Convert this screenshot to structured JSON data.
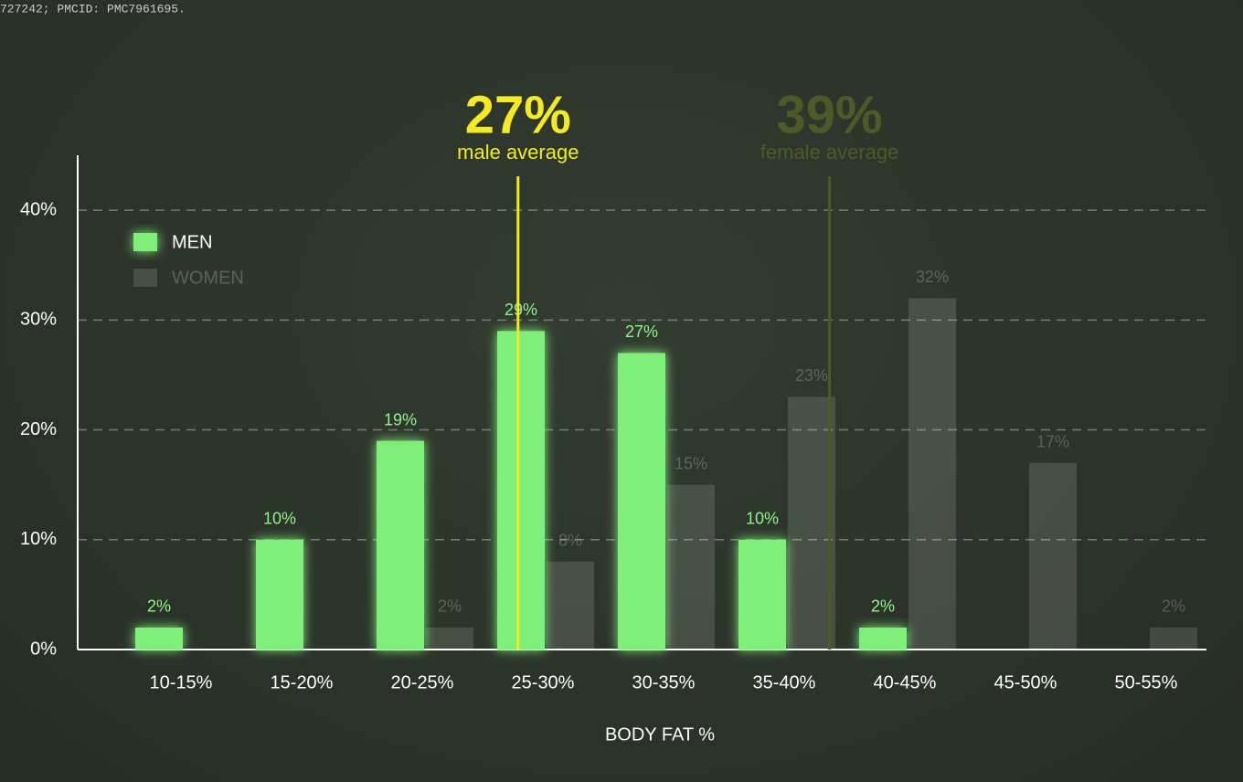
{
  "source": "727242; PMCID: PMC7961695.",
  "chart_data": {
    "type": "bar",
    "x_label": "BODY FAT %",
    "categories": [
      "10-15%",
      "15-20%",
      "20-25%",
      "25-30%",
      "30-35%",
      "35-40%",
      "40-45%",
      "45-50%",
      "50-55%"
    ],
    "series": [
      {
        "name": "MEN",
        "color": "#7ef07a",
        "values": [
          2,
          10,
          19,
          29,
          27,
          10,
          2,
          null,
          null
        ],
        "value_labels": [
          "2%",
          "10%",
          "19%",
          "29%",
          "27%",
          "10%",
          "2%",
          null,
          null
        ]
      },
      {
        "name": "WOMEN",
        "color": "rgba(255,255,255,0.13)",
        "values": [
          null,
          null,
          2,
          8,
          15,
          23,
          32,
          17,
          2
        ],
        "value_labels": [
          null,
          null,
          "2%",
          "8%",
          "15%",
          "23%",
          "32%",
          "17%",
          "2%"
        ]
      }
    ],
    "ylim": [
      0,
      45
    ],
    "yticks": [
      {
        "value": 0,
        "label": "0%"
      },
      {
        "value": 10,
        "label": "10%"
      },
      {
        "value": 20,
        "label": "20%"
      },
      {
        "value": 30,
        "label": "30%"
      },
      {
        "value": 40,
        "label": "40%"
      }
    ],
    "grid": true,
    "legend": "upper left",
    "annotations": [
      {
        "x": 27,
        "label": "27%",
        "text": "male average",
        "color": "#f3ea22"
      },
      {
        "x": 39,
        "label": "39%",
        "text": "female average",
        "color": "#4d5a26"
      }
    ]
  }
}
